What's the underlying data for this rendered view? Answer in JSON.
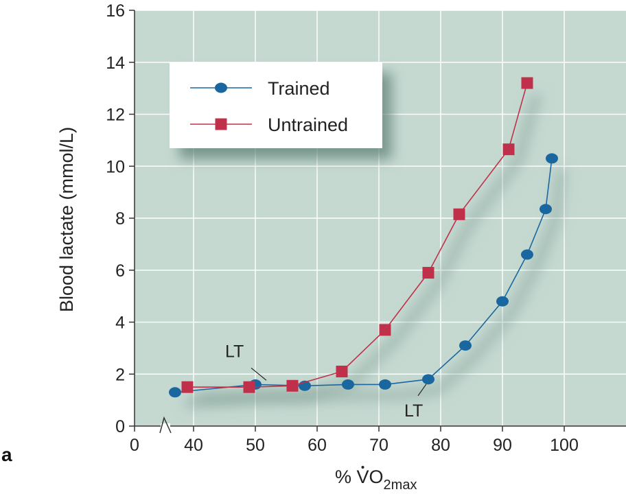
{
  "chart_data": {
    "type": "line",
    "panel_label": "a",
    "xlabel": {
      "prefix": "% ",
      "main": "VO",
      "sub": "2max"
    },
    "ylabel": "Blood lactate (mmol/L)",
    "xlim": [
      0,
      110
    ],
    "ylim": [
      0,
      16
    ],
    "x_axis_break": true,
    "x_ticks": [
      0,
      40,
      50,
      60,
      70,
      80,
      90,
      100
    ],
    "y_ticks": [
      0,
      2,
      4,
      6,
      8,
      10,
      12,
      14,
      16
    ],
    "grid": true,
    "legend_position": "top-left",
    "background_color": "#c5d9d1",
    "series": [
      {
        "name": "Trained",
        "color": "#1a67a0",
        "marker": "circle",
        "x": [
          37,
          50,
          58,
          65,
          71,
          78,
          84,
          90,
          94,
          97,
          98
        ],
        "y": [
          1.3,
          1.6,
          1.55,
          1.6,
          1.6,
          1.8,
          3.1,
          4.8,
          6.6,
          8.35,
          10.3
        ]
      },
      {
        "name": "Untrained",
        "color": "#c0304a",
        "marker": "square",
        "x": [
          39,
          49,
          56,
          64,
          71,
          78,
          83,
          91,
          94
        ],
        "y": [
          1.5,
          1.5,
          1.55,
          2.1,
          3.7,
          5.9,
          8.15,
          10.65,
          13.2
        ]
      }
    ],
    "annotations": [
      {
        "text": "LT",
        "series": "Untrained",
        "x": 52,
        "y": 1.55
      },
      {
        "text": "LT",
        "series": "Trained",
        "x": 77,
        "y": 1.8
      }
    ]
  }
}
